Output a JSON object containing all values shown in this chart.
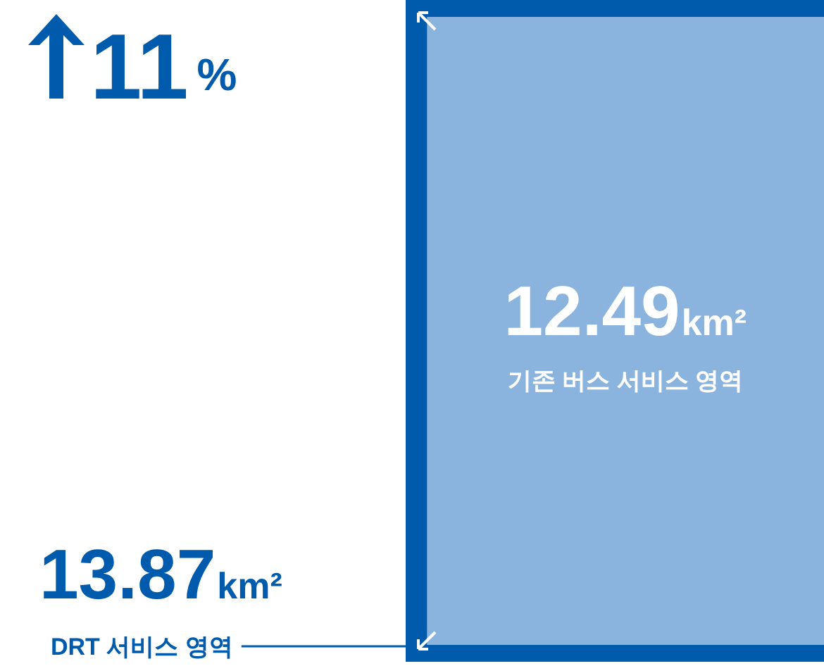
{
  "chart_data": {
    "type": "other",
    "categories": [
      "DRT 서비스 영역",
      "기존 버스 서비스 영역"
    ],
    "values": [
      13.87,
      12.49
    ],
    "value_labels": [
      "13.87km²",
      "12.49km²"
    ],
    "colors": [
      "#005bac",
      "#8ab4de"
    ],
    "annotations": [
      "11%"
    ]
  }
}
